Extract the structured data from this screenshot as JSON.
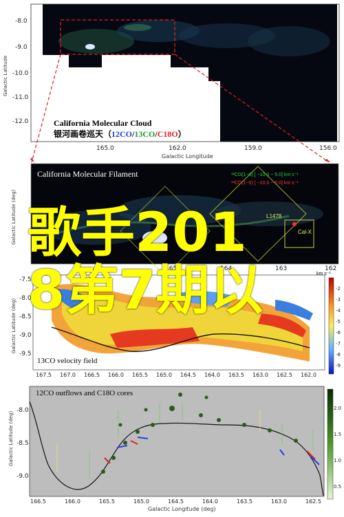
{
  "panel1": {
    "title": "California Molecular Cloud",
    "subtitle_cn": "银河画卷巡天（",
    "co12": "12CO",
    "co13": "13CO",
    "c18o": "C18O",
    "subtitle_end": "）",
    "y_axis_label": "Galactic Latitude",
    "x_axis_label": "Galactic Longitude",
    "y_ticks": [
      "-8.0",
      "-9.0",
      "-10.0",
      "-11.0",
      "-12.0"
    ],
    "x_ticks": [
      "165.0",
      "162.0",
      "159.0",
      "156.0"
    ]
  },
  "panel2": {
    "title": "California Molecular Filament",
    "y_axis_label": "Galactic Latitude (deg)",
    "legend_line1": "¹²CO(1−0) [ −10.0 − 5.0] km s⁻¹",
    "legend_line2": "¹³CO(1−0) [ −10.0 − 5.0] km s⁻¹",
    "box1": "L1478",
    "box2": "Cal-X",
    "x_ticks": [
      "165",
      "164",
      "163",
      "162"
    ]
  },
  "panel3": {
    "title": "13CO velocity field",
    "colorbar_unit": "km s⁻¹",
    "y_axis_label": "Galactic Latitude (deg)",
    "y_ticks": [
      "-7.5",
      "-8.0",
      "-8.5",
      "-9.0",
      "-9.5"
    ],
    "x_ticks": [
      "167.5",
      "167.0",
      "166.5",
      "166.0",
      "165.5",
      "165.0",
      "164.5",
      "164.0",
      "163.5",
      "163.0",
      "162.5",
      "162.0"
    ],
    "cbar_ticks": [
      "-2",
      "-3",
      "-4",
      "-5",
      "-6",
      "-7",
      "-8",
      "-9"
    ]
  },
  "panel4": {
    "title": "12CO outflows and C18O cores",
    "y_axis_label": "Galactic Latitude (deg)",
    "x_axis_label": "Galactic Longitude (deg)",
    "y_ticks": [
      "-8.0",
      "-8.5",
      "-9.0"
    ],
    "x_ticks": [
      "166.5",
      "166.0",
      "165.5",
      "165.0",
      "164.5",
      "164.0",
      "163.5",
      "163.0",
      "162.5"
    ],
    "cbar_ticks": [
      "2.0",
      "1.5",
      "1.0",
      "0.5"
    ]
  },
  "overlay_text": {
    "line1": "歌手201",
    "line2": "8第7期以"
  },
  "colors": {
    "overlay": "#ffff00",
    "arrow": "#dd2222",
    "panel_bg": "#05070d"
  }
}
